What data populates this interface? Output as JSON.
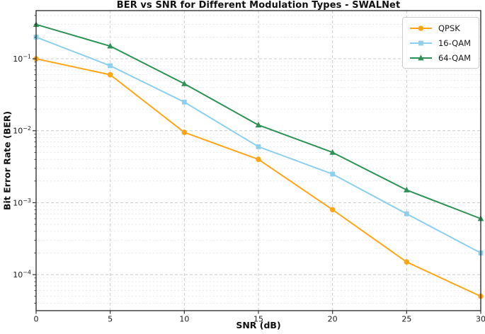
{
  "chart_data": {
    "type": "line",
    "title": "BER vs SNR for Different Modulation Types - SWALNet",
    "xlabel": "SNR (dB)",
    "ylabel": "Bit Error Rate (BER)",
    "x": [
      0,
      5,
      10,
      15,
      20,
      25,
      30
    ],
    "series": [
      {
        "name": "QPSK",
        "color": "#FFA516",
        "marker": "circle",
        "values": [
          0.1,
          0.06,
          0.0095,
          0.004,
          0.0008,
          0.00015,
          5e-05
        ]
      },
      {
        "name": "16-QAM",
        "color": "#8DCFEC",
        "marker": "square",
        "values": [
          0.2,
          0.08,
          0.025,
          0.006,
          0.0025,
          0.0007,
          0.0002
        ]
      },
      {
        "name": "64-QAM",
        "color": "#2E9257",
        "marker": "triangle",
        "values": [
          0.3,
          0.15,
          0.045,
          0.012,
          0.005,
          0.0015,
          0.0006
        ]
      }
    ],
    "x_ticks": [
      {
        "label": "0",
        "value": 0
      },
      {
        "label": "5",
        "value": 5
      },
      {
        "label": "10",
        "value": 10
      },
      {
        "label": "15",
        "value": 15
      },
      {
        "label": "20",
        "value": 20
      },
      {
        "label": "25",
        "value": 25
      },
      {
        "label": "30",
        "value": 30
      }
    ],
    "y_ticks": [
      {
        "text": "10⁻¹",
        "base": "10",
        "exponent": "−1",
        "value": 0.1
      },
      {
        "text": "10⁻²",
        "base": "10",
        "exponent": "−2",
        "value": 0.01
      },
      {
        "text": "10⁻³",
        "base": "10",
        "exponent": "−3",
        "value": 0.001
      },
      {
        "text": "10⁻⁴",
        "base": "10",
        "exponent": "−4",
        "value": 0.0001
      }
    ],
    "xlim": [
      0,
      30
    ],
    "ylim": [
      3.16e-05,
      0.467
    ],
    "y_scale": "log",
    "x_scale": "linear",
    "grid": {
      "major": true,
      "minor": true,
      "style": "dashed"
    },
    "legend": {
      "position": "upper right",
      "entries": [
        "QPSK",
        "16-QAM",
        "64-QAM"
      ]
    }
  },
  "colors": {
    "background": "#ffffff",
    "grid_major": "#c9c9c9",
    "grid_minor": "#e4e4e4",
    "spine": "#333333",
    "tick_text": "#1a1a1a"
  }
}
